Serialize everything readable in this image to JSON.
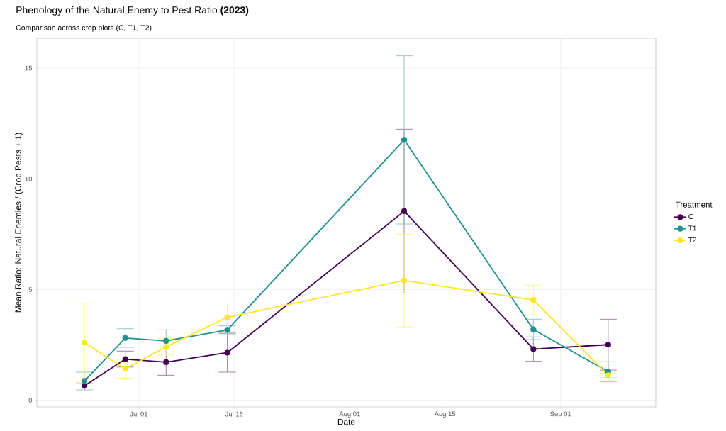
{
  "chart_data": {
    "type": "line",
    "title": "Phenology of the Natural Enemy to Pest Ratio  **(2023)**",
    "subtitle": "Comparison across crop plots (C, T1, T2)",
    "xlabel": "Date",
    "ylabel": "Mean Ratio: Natural Enemies / (Crop Pests + 1)",
    "legend_title": "Treatment",
    "x": [
      "2023-06-23",
      "2023-06-29",
      "2023-07-05",
      "2023-07-14",
      "2023-08-09",
      "2023-08-28",
      "2023-09-08"
    ],
    "series": [
      {
        "name": "C",
        "color": "#440154",
        "values": [
          0.65,
          1.86,
          1.72,
          2.15,
          8.54,
          2.31,
          2.51
        ],
        "errors": [
          0.1,
          0.36,
          0.59,
          0.88,
          3.7,
          0.55,
          1.15
        ]
      },
      {
        "name": "T1",
        "color": "#21908c",
        "values": [
          0.87,
          2.81,
          2.68,
          3.18,
          11.76,
          3.2,
          1.29
        ],
        "errors": [
          0.4,
          0.42,
          0.5,
          0.18,
          3.8,
          0.46,
          0.45
        ]
      },
      {
        "name": "T2",
        "color": "#fde725",
        "values": [
          2.6,
          1.42,
          2.41,
          3.75,
          5.41,
          4.53,
          1.13
        ],
        "errors": [
          1.78,
          0.42,
          0.37,
          0.64,
          2.1,
          0.67,
          0.1
        ]
      }
    ],
    "xlim": [
      "2023-06-16",
      "2023-09-15"
    ],
    "ylim": [
      -0.3,
      16.35
    ],
    "xticks": [
      {
        "value": "2023-07-01",
        "label": "Jul 01"
      },
      {
        "value": "2023-07-15",
        "label": "Jul 15"
      },
      {
        "value": "2023-08-01",
        "label": "Aug 01"
      },
      {
        "value": "2023-08-15",
        "label": "Aug 15"
      },
      {
        "value": "2023-09-01",
        "label": "Sep 01"
      }
    ],
    "yticks": [
      0,
      5,
      10,
      15
    ],
    "grid": true,
    "legend": "right",
    "marker": "circle",
    "line_style": "solid"
  }
}
